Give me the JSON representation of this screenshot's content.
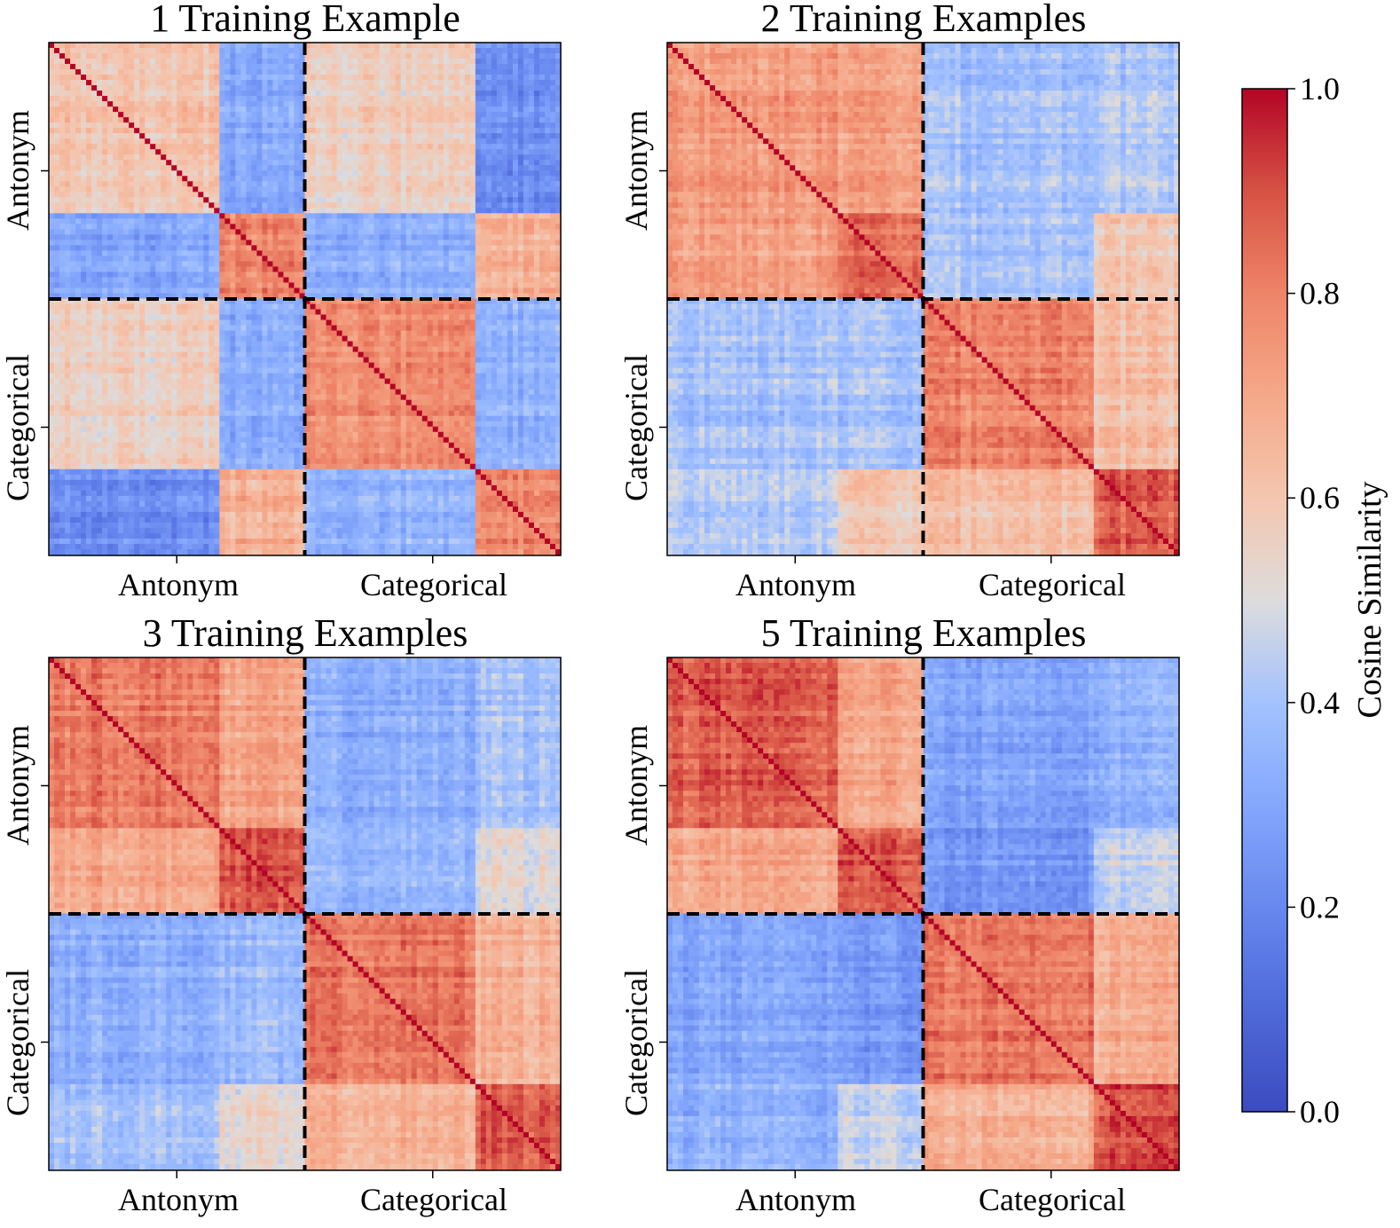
{
  "colors": {
    "low": "#3b4cc0",
    "mid": "#dddcdc",
    "high": "#b40426"
  },
  "chart_data": [
    {
      "type": "heatmap",
      "title": "1 Training Example",
      "x_ticks": [
        "Antonym",
        "Categorical"
      ],
      "y_ticks": [
        "Antonym",
        "Categorical"
      ],
      "groups": [
        "Antonym",
        "Categorical"
      ],
      "subgroup_fraction": 0.667,
      "block_means": [
        [
          0.6,
          0.3,
          0.56,
          0.22
        ],
        [
          0.3,
          0.78,
          0.32,
          0.66
        ],
        [
          0.56,
          0.32,
          0.77,
          0.34
        ],
        [
          0.22,
          0.66,
          0.34,
          0.78
        ]
      ],
      "value_range": [
        0,
        1
      ]
    },
    {
      "type": "heatmap",
      "title": "2 Training Examples",
      "x_ticks": [
        "Antonym",
        "Categorical"
      ],
      "y_ticks": [
        "Antonym",
        "Categorical"
      ],
      "groups": [
        "Antonym",
        "Categorical"
      ],
      "subgroup_fraction": 0.667,
      "block_means": [
        [
          0.74,
          0.72,
          0.4,
          0.42
        ],
        [
          0.72,
          0.84,
          0.4,
          0.58
        ],
        [
          0.4,
          0.4,
          0.8,
          0.62
        ],
        [
          0.42,
          0.58,
          0.62,
          0.86
        ]
      ],
      "value_range": [
        0,
        1
      ]
    },
    {
      "type": "heatmap",
      "title": "3 Training Examples",
      "x_ticks": [
        "Antonym",
        "Categorical"
      ],
      "y_ticks": [
        "Antonym",
        "Categorical"
      ],
      "groups": [
        "Antonym",
        "Categorical"
      ],
      "subgroup_fraction": 0.667,
      "block_means": [
        [
          0.82,
          0.7,
          0.33,
          0.4
        ],
        [
          0.7,
          0.88,
          0.36,
          0.52
        ],
        [
          0.33,
          0.36,
          0.82,
          0.66
        ],
        [
          0.4,
          0.52,
          0.66,
          0.88
        ]
      ],
      "value_range": [
        0,
        1
      ]
    },
    {
      "type": "heatmap",
      "title": "5 Training Examples",
      "x_ticks": [
        "Antonym",
        "Categorical"
      ],
      "y_ticks": [
        "Antonym",
        "Categorical"
      ],
      "groups": [
        "Antonym",
        "Categorical"
      ],
      "subgroup_fraction": 0.667,
      "block_means": [
        [
          0.87,
          0.7,
          0.3,
          0.34
        ],
        [
          0.7,
          0.89,
          0.26,
          0.46
        ],
        [
          0.3,
          0.26,
          0.83,
          0.68
        ],
        [
          0.34,
          0.46,
          0.68,
          0.9
        ]
      ],
      "value_range": [
        0,
        1
      ]
    }
  ],
  "colorbar": {
    "label": "Cosine Similarity",
    "ticks": [
      0.0,
      0.2,
      0.4,
      0.6,
      0.8,
      1.0
    ],
    "tick_labels": [
      "0.0",
      "0.2",
      "0.4",
      "0.6",
      "0.8",
      "1.0"
    ],
    "range": [
      0,
      1
    ]
  }
}
